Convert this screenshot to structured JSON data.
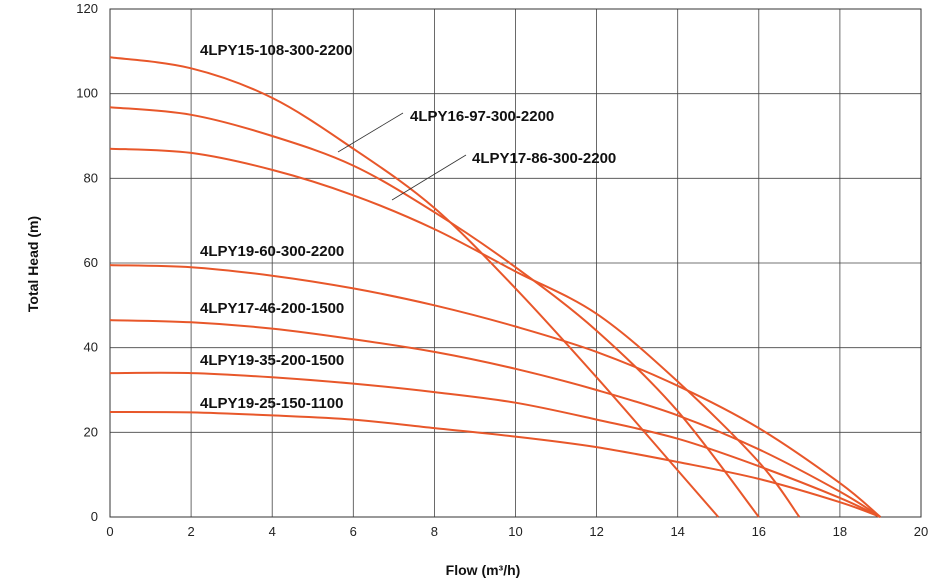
{
  "chart_data": {
    "type": "line",
    "xlabel": "Flow (m³/h)",
    "ylabel": "Total Head (m)",
    "xlim": [
      0,
      20
    ],
    "ylim": [
      0,
      120
    ],
    "xticks": [
      0,
      2,
      4,
      6,
      8,
      10,
      12,
      14,
      16,
      18,
      20
    ],
    "yticks": [
      0,
      20,
      40,
      60,
      80,
      100,
      120
    ],
    "grid": true,
    "line_color": "#e8572a",
    "series": [
      {
        "name": "4LPY15-108-300-2200",
        "x": [
          0,
          2,
          4,
          6,
          8,
          10,
          12,
          14,
          15
        ],
        "y": [
          108.6,
          106,
          99,
          87,
          73,
          54,
          33,
          11,
          0
        ]
      },
      {
        "name": "4LPY16-97-300-2200",
        "x": [
          0,
          2,
          4,
          6,
          8,
          10,
          12,
          14,
          16
        ],
        "y": [
          96.8,
          95,
          90,
          83,
          72,
          59,
          44,
          25,
          0
        ]
      },
      {
        "name": "4LPY17-86-300-2200",
        "x": [
          0,
          2,
          4,
          6,
          8,
          10,
          12,
          14,
          16,
          17
        ],
        "y": [
          87,
          86,
          82,
          76,
          68,
          58,
          48,
          32,
          13,
          0
        ]
      },
      {
        "name": "4LPY19-60-300-2200",
        "x": [
          0,
          2,
          4,
          6,
          8,
          10,
          12,
          14,
          16,
          18,
          19
        ],
        "y": [
          59.5,
          59,
          57,
          54,
          50,
          45,
          39,
          31,
          21,
          8,
          0
        ]
      },
      {
        "name": "4LPY17-46-200-1500",
        "x": [
          0,
          2,
          4,
          6,
          8,
          10,
          12,
          14,
          16,
          18,
          19
        ],
        "y": [
          46.5,
          46,
          44.5,
          42,
          39,
          35,
          30,
          24,
          16,
          6,
          0
        ]
      },
      {
        "name": "4LPY19-35-200-1500",
        "x": [
          0,
          2,
          4,
          6,
          8,
          10,
          12,
          14,
          16,
          18,
          19
        ],
        "y": [
          34,
          34,
          33,
          31.5,
          29.5,
          27,
          23,
          18.5,
          12,
          4.5,
          0
        ]
      },
      {
        "name": "4LPY19-25-150-1100",
        "x": [
          0,
          2,
          4,
          6,
          8,
          10,
          12,
          14,
          16,
          18,
          19
        ],
        "y": [
          24.8,
          24.7,
          24,
          23,
          21,
          19,
          16.5,
          13,
          9,
          3.5,
          0
        ]
      }
    ]
  }
}
